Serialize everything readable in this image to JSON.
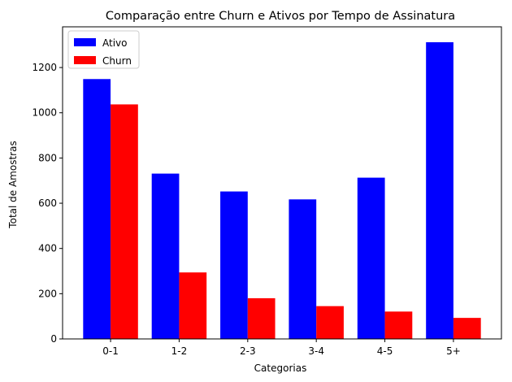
{
  "chart_data": {
    "type": "bar",
    "title": "Comparação entre Churn e Ativos por Tempo de Assinatura",
    "xlabel": "Categorias",
    "ylabel": "Total de Amostras",
    "categories": [
      "0-1",
      "1-2",
      "2-3",
      "3-4",
      "4-5",
      "5+"
    ],
    "series": [
      {
        "name": "Ativo",
        "color": "#0000ff",
        "values": [
          1149,
          731,
          652,
          617,
          713,
          1312
        ]
      },
      {
        "name": "Churn",
        "color": "#ff0000",
        "values": [
          1037,
          294,
          180,
          145,
          121,
          93
        ]
      }
    ],
    "ylim": [
      0,
      1380
    ],
    "yticks": [
      0,
      200,
      400,
      600,
      800,
      1000,
      1200
    ],
    "grid": false,
    "legend_position": "top-left"
  }
}
